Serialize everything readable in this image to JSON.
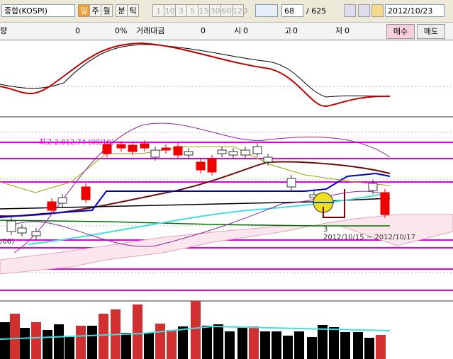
{
  "toolbar": {
    "symbol": "종합(KOSPI)",
    "periods": [
      "일",
      "주",
      "월",
      "분",
      "틱"
    ],
    "minutes": [
      "1",
      "10",
      "3",
      "5",
      "15",
      "30",
      "60",
      "120"
    ],
    "count": "68",
    "total": "/ 625",
    "date": "2012/10/23"
  },
  "info": {
    "volume_label": "량",
    "volume": "0",
    "change": "0%",
    "amount_label": "거래대금",
    "amount": "0",
    "open_label": "시",
    "open": "0",
    "high_label": "고",
    "high": "0",
    "low_label": "저",
    "low": "0",
    "buy": "매수",
    "sell": "매도"
  },
  "chart": {
    "high_note": "최고 2,012.74 (09/19)",
    "count_note": "3",
    "range_note": "2012/10/15 ~ 2012/10/17",
    "left_note": "/06)"
  }
}
